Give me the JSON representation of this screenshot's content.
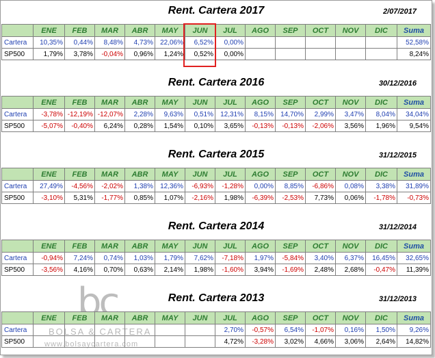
{
  "months": [
    "ENE",
    "FEB",
    "MAR",
    "ABR",
    "MAY",
    "JUN",
    "JUL",
    "AGO",
    "SEP",
    "OCT",
    "NOV",
    "DIC"
  ],
  "sum_label": "Suma",
  "highlight_column": "JUN",
  "watermark": {
    "mark": "bc",
    "name": "BOLSA & CARTERA",
    "url": "www.bolsaycartera.com"
  },
  "tables": [
    {
      "title": "Rent. Cartera 2017",
      "date": "2/07/2017",
      "rows": [
        {
          "label": "Cartera",
          "values": [
            "10,35%",
            "0,44%",
            "8,48%",
            "4,73%",
            "22,06%",
            "6,52%",
            "0,00%",
            "",
            "",
            "",
            "",
            ""
          ],
          "sum": "52,58%"
        },
        {
          "label": "SP500",
          "values": [
            "1,79%",
            "3,78%",
            "-0,04%",
            "0,96%",
            "1,24%",
            "0,52%",
            "0,00%",
            "",
            "",
            "",
            "",
            ""
          ],
          "sum": "8,24%"
        }
      ]
    },
    {
      "title": "Rent. Cartera 2016",
      "date": "30/12/2016",
      "rows": [
        {
          "label": "Cartera",
          "values": [
            "-3,78%",
            "-12,19%",
            "-12,07%",
            "2,28%",
            "9,63%",
            "0,51%",
            "12,31%",
            "8,15%",
            "14,70%",
            "2,99%",
            "3,47%",
            "8,04%"
          ],
          "sum": "34,04%"
        },
        {
          "label": "SP500",
          "values": [
            "-5,07%",
            "-0,40%",
            "6,24%",
            "0,28%",
            "1,54%",
            "0,10%",
            "3,65%",
            "-0,13%",
            "-0,13%",
            "-2,06%",
            "3,56%",
            "1,96%"
          ],
          "sum": "9,54%"
        }
      ]
    },
    {
      "title": "Rent. Cartera 2015",
      "date": "31/12/2015",
      "rows": [
        {
          "label": "Cartera",
          "values": [
            "27,49%",
            "-4,56%",
            "-2,02%",
            "1,38%",
            "12,36%",
            "-6,93%",
            "-1,28%",
            "0,00%",
            "8,85%",
            "-6,86%",
            "0,08%",
            "3,38%"
          ],
          "sum": "31,89%"
        },
        {
          "label": "SP500",
          "values": [
            "-3,10%",
            "5,31%",
            "-1,77%",
            "0,85%",
            "1,07%",
            "-2,16%",
            "1,98%",
            "-6,39%",
            "-2,53%",
            "7,73%",
            "0,06%",
            "-1,78%"
          ],
          "sum": "-0,73%"
        }
      ]
    },
    {
      "title": "Rent. Cartera 2014",
      "date": "31/12/2014",
      "rows": [
        {
          "label": "Cartera",
          "values": [
            "-0,94%",
            "7,24%",
            "0,74%",
            "1,03%",
            "1,79%",
            "7,62%",
            "-7,18%",
            "1,97%",
            "-5,84%",
            "3,40%",
            "6,37%",
            "16,45%"
          ],
          "sum": "32,65%"
        },
        {
          "label": "SP500",
          "values": [
            "-3,56%",
            "4,16%",
            "0,70%",
            "0,63%",
            "2,14%",
            "1,98%",
            "-1,60%",
            "3,94%",
            "-1,69%",
            "2,48%",
            "2,68%",
            "-0,47%"
          ],
          "sum": "11,39%"
        }
      ]
    },
    {
      "title": "Rent. Cartera 2013",
      "date": "31/12/2013",
      "rows": [
        {
          "label": "Cartera",
          "values": [
            "",
            "",
            "",
            "",
            "",
            "",
            "2,70%",
            "-0,57%",
            "6,54%",
            "-1,07%",
            "0,16%",
            "1,50%"
          ],
          "sum": "9,26%"
        },
        {
          "label": "SP500",
          "values": [
            "",
            "",
            "",
            "",
            "",
            "",
            "4,72%",
            "-3,28%",
            "3,02%",
            "4,66%",
            "3,06%",
            "2,64%"
          ],
          "sum": "14,82%"
        }
      ]
    }
  ]
}
